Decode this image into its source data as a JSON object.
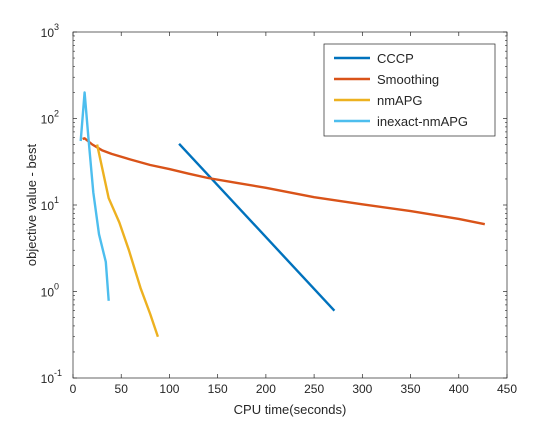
{
  "chart_data": {
    "type": "line",
    "title": "",
    "xlabel": "CPU time(seconds)",
    "ylabel": "objective value - best",
    "xlim": [
      0,
      450
    ],
    "ylim": [
      0.1,
      1000
    ],
    "yscale": "log",
    "grid": false,
    "legend_position": "top-right",
    "x_ticks": [
      0,
      50,
      100,
      150,
      200,
      250,
      300,
      350,
      400,
      450
    ],
    "x_tick_labels": [
      "0",
      "50",
      "100",
      "150",
      "200",
      "250",
      "300",
      "350",
      "400",
      "450"
    ],
    "y_ticks": [
      0.1,
      1,
      10,
      100,
      1000
    ],
    "y_tick_labels": [
      {
        "base": "10",
        "exp": "-1"
      },
      {
        "base": "10",
        "exp": "0"
      },
      {
        "base": "10",
        "exp": "1"
      },
      {
        "base": "10",
        "exp": "2"
      },
      {
        "base": "10",
        "exp": "3"
      }
    ],
    "series": [
      {
        "name": "CCCP",
        "color": "#0072BD",
        "points": [
          [
            110,
            51
          ],
          [
            271,
            0.6
          ]
        ]
      },
      {
        "name": "Smoothing",
        "color": "#D95319",
        "points": [
          [
            10,
            58
          ],
          [
            12,
            59
          ],
          [
            20,
            50
          ],
          [
            30,
            43
          ],
          [
            40,
            39
          ],
          [
            60,
            33.5
          ],
          [
            80,
            29
          ],
          [
            100,
            26
          ],
          [
            120,
            23
          ],
          [
            140,
            20.5
          ],
          [
            170,
            18
          ],
          [
            200,
            15.8
          ],
          [
            250,
            12.3
          ],
          [
            300,
            10.2
          ],
          [
            350,
            8.5
          ],
          [
            400,
            6.9
          ],
          [
            427,
            6
          ]
        ]
      },
      {
        "name": "nmAPG",
        "color": "#EDB120",
        "points": [
          [
            25,
            50
          ],
          [
            37,
            12
          ],
          [
            48,
            6.3
          ],
          [
            58,
            3
          ],
          [
            70,
            1.1
          ],
          [
            80,
            0.55
          ],
          [
            88,
            0.3
          ]
        ]
      },
      {
        "name": "inexact-nmAPG",
        "color": "#4DBEEE",
        "points": [
          [
            8,
            55
          ],
          [
            12,
            200
          ],
          [
            16,
            60
          ],
          [
            21,
            14
          ],
          [
            27,
            4.6
          ],
          [
            34,
            2.2
          ],
          [
            37,
            0.78
          ]
        ]
      }
    ]
  }
}
